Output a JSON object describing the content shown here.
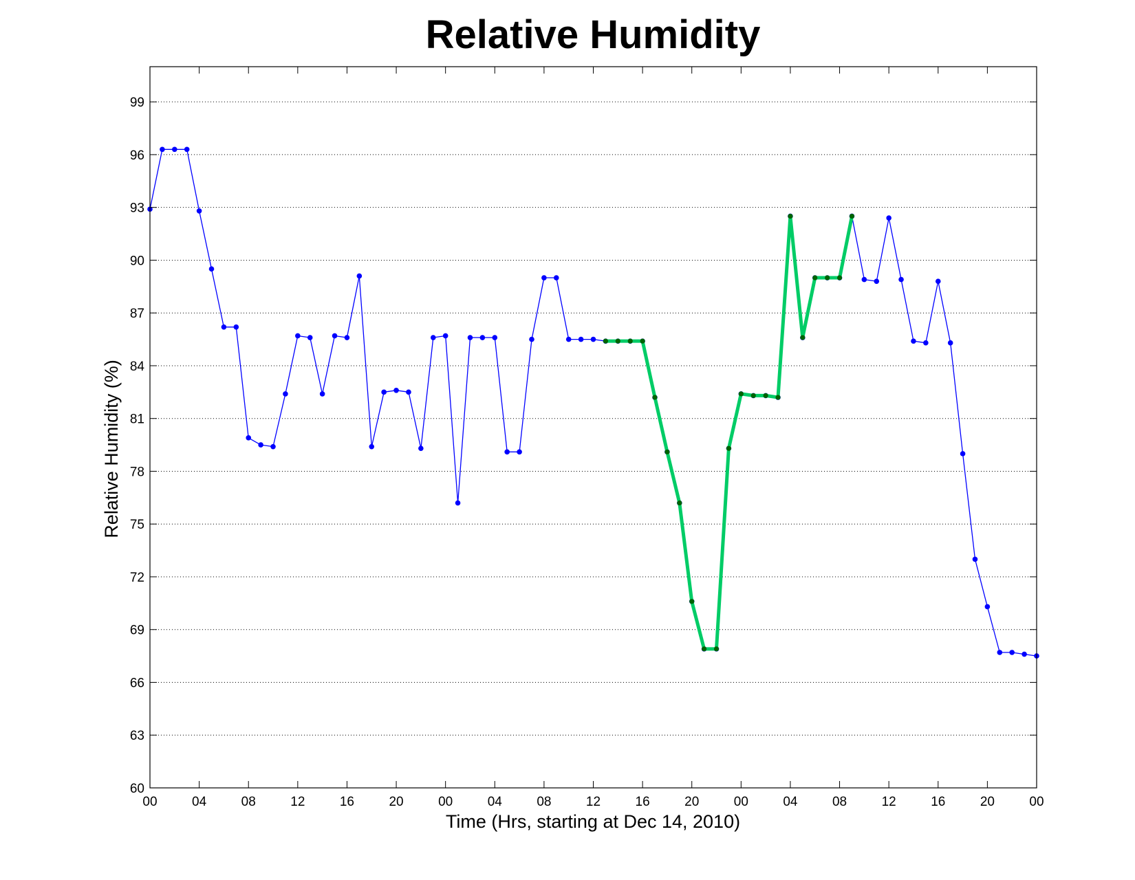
{
  "chart_data": {
    "type": "line",
    "title": "Relative Humidity",
    "xlabel": "Time (Hrs, starting at Dec 14, 2010)",
    "ylabel": "Relative Humidity (%)",
    "xlim": [
      0,
      72
    ],
    "ylim": [
      60,
      101
    ],
    "x_tick_values": [
      0,
      4,
      8,
      12,
      16,
      20,
      24,
      28,
      32,
      36,
      40,
      44,
      48,
      52,
      56,
      60,
      64,
      68,
      72
    ],
    "x_tick_labels": [
      "00",
      "04",
      "08",
      "12",
      "16",
      "20",
      "00",
      "04",
      "08",
      "12",
      "16",
      "20",
      "00",
      "04",
      "08",
      "12",
      "16",
      "20",
      "00"
    ],
    "y_ticks": [
      60,
      63,
      66,
      69,
      72,
      75,
      78,
      81,
      84,
      87,
      90,
      93,
      96,
      99
    ],
    "y_tick_labels": [
      "60",
      "63",
      "66",
      "69",
      "72",
      "75",
      "78",
      "81",
      "84",
      "87",
      "90",
      "93",
      "96",
      "99"
    ],
    "grid": "horizontal dotted",
    "series": [
      {
        "color": "#0000ff",
        "marker_color": "#0000ff",
        "line_width": "thin",
        "x": [
          0,
          1,
          2,
          3,
          4,
          5,
          6,
          7,
          8,
          9,
          10,
          11,
          12,
          13,
          14,
          15,
          16,
          17,
          18,
          19,
          20,
          21,
          22,
          23,
          24,
          25,
          26,
          27,
          28,
          29,
          30,
          31,
          32,
          33,
          34,
          35,
          36,
          37,
          38,
          39,
          40,
          41,
          42,
          43,
          44,
          45,
          46,
          47,
          48,
          49,
          50,
          51,
          52,
          53,
          54,
          55,
          56,
          57,
          58,
          59,
          60,
          61,
          62,
          63,
          64,
          65,
          66,
          67,
          68,
          69,
          70,
          71,
          72
        ],
        "values": [
          92.9,
          96.3,
          96.3,
          96.3,
          92.8,
          89.5,
          86.2,
          86.2,
          79.9,
          79.5,
          79.4,
          82.4,
          85.7,
          85.6,
          82.4,
          85.7,
          85.6,
          89.1,
          79.4,
          82.5,
          82.6,
          82.5,
          79.3,
          85.6,
          85.7,
          76.2,
          85.6,
          85.6,
          85.6,
          79.1,
          79.1,
          85.5,
          89.0,
          89.0,
          85.5,
          85.5,
          85.5,
          85.4,
          85.4,
          85.4,
          85.4,
          82.2,
          79.1,
          76.2,
          70.6,
          67.9,
          67.9,
          79.3,
          82.4,
          82.3,
          82.3,
          82.2,
          92.5,
          85.6,
          89.0,
          89.0,
          89.0,
          92.5,
          88.9,
          88.8,
          92.4,
          88.9,
          85.4,
          85.3,
          88.8,
          85.3,
          79.0,
          73.0,
          70.3,
          67.7,
          67.7,
          67.6,
          67.5
        ]
      },
      {
        "color": "#00cc66",
        "marker_color": "#006400",
        "line_width": "thick",
        "x": [
          37,
          38,
          39,
          40,
          41,
          42,
          43,
          44,
          45,
          46,
          47,
          48,
          49,
          50,
          51,
          52,
          53,
          54,
          55,
          56,
          57
        ],
        "values": [
          85.4,
          85.4,
          85.4,
          85.4,
          82.2,
          79.1,
          76.2,
          70.6,
          67.9,
          67.9,
          79.3,
          82.4,
          82.3,
          82.3,
          82.2,
          92.5,
          85.6,
          89.0,
          89.0,
          89.0,
          92.5
        ]
      }
    ]
  }
}
